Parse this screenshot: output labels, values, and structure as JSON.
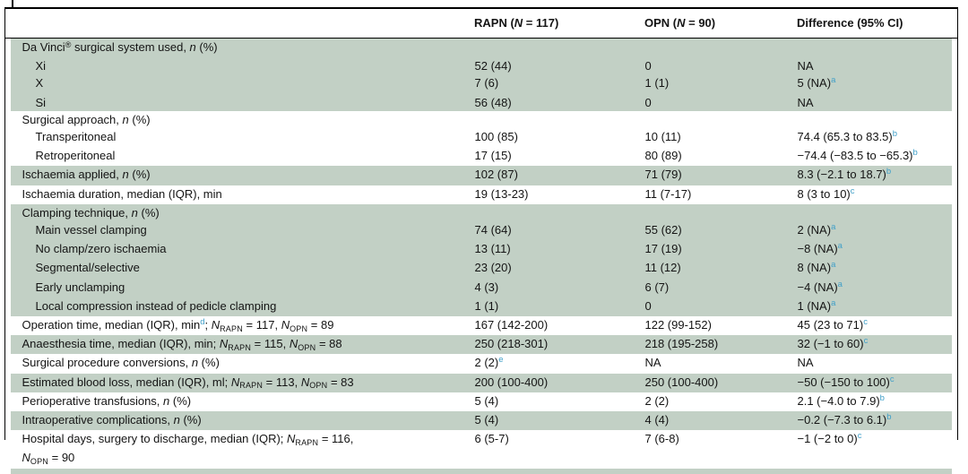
{
  "colors": {
    "row_stripe": "#c2d0c5",
    "superscript_blue": "#3f9fc8",
    "border": "#000000",
    "ink": "#141414"
  },
  "header": {
    "rapn": [
      [
        "RAPN (",
        ""
      ],
      [
        "N",
        "i"
      ],
      [
        " = 117)",
        ""
      ]
    ],
    "opn": [
      [
        "OPN (",
        ""
      ],
      [
        "N",
        "i"
      ],
      [
        " = 90)",
        ""
      ]
    ],
    "difference": [
      [
        "Difference (95% CI)",
        ""
      ]
    ]
  },
  "table": {
    "rows": [
      {
        "bg": "g",
        "indent": 0,
        "label": [
          [
            "Da Vinci",
            ""
          ],
          [
            "®",
            "sup"
          ],
          [
            " surgical system used, ",
            ""
          ],
          [
            "n",
            "i"
          ],
          [
            " (%)",
            ""
          ]
        ],
        "rapn": [],
        "opn": [],
        "diff": []
      },
      {
        "bg": "g",
        "indent": 1,
        "label": [
          [
            "Xi",
            ""
          ]
        ],
        "rapn": [
          [
            "52 (44)",
            ""
          ]
        ],
        "opn": [
          [
            "0",
            ""
          ]
        ],
        "diff": [
          [
            "NA",
            ""
          ]
        ]
      },
      {
        "bg": "g",
        "indent": 1,
        "label": [
          [
            "X",
            ""
          ]
        ],
        "rapn": [
          [
            "7 (6)",
            ""
          ]
        ],
        "opn": [
          [
            "1 (1)",
            ""
          ]
        ],
        "diff": [
          [
            "5 (NA)",
            ""
          ],
          [
            "a",
            "supb"
          ]
        ]
      },
      {
        "bg": "g",
        "indent": 1,
        "label": [
          [
            "Si",
            ""
          ]
        ],
        "rapn": [
          [
            "56 (48)",
            ""
          ]
        ],
        "opn": [
          [
            "0",
            ""
          ]
        ],
        "diff": [
          [
            "NA",
            ""
          ]
        ]
      },
      {
        "bg": "w",
        "indent": 0,
        "label": [
          [
            "Surgical approach, ",
            ""
          ],
          [
            "n",
            "i"
          ],
          [
            " (%)",
            ""
          ]
        ],
        "rapn": [],
        "opn": [],
        "diff": []
      },
      {
        "bg": "w",
        "indent": 1,
        "label": [
          [
            "Transperitoneal",
            ""
          ]
        ],
        "rapn": [
          [
            "100 (85)",
            ""
          ]
        ],
        "opn": [
          [
            "10 (11)",
            ""
          ]
        ],
        "diff": [
          [
            "74.4 (65.3 to 83.5)",
            ""
          ],
          [
            "b",
            "supb"
          ]
        ]
      },
      {
        "bg": "w",
        "indent": 1,
        "label": [
          [
            "Retroperitoneal",
            ""
          ]
        ],
        "rapn": [
          [
            "17 (15)",
            ""
          ]
        ],
        "opn": [
          [
            "80 (89)",
            ""
          ]
        ],
        "diff": [
          [
            "−74.4 (−83.5 to −65.3)",
            ""
          ],
          [
            "b",
            "supb"
          ]
        ]
      },
      {
        "bg": "g",
        "indent": 0,
        "label": [
          [
            "Ischaemia applied, ",
            ""
          ],
          [
            "n",
            "i"
          ],
          [
            " (%)",
            ""
          ]
        ],
        "rapn": [
          [
            "102 (87)",
            ""
          ]
        ],
        "opn": [
          [
            "71 (79)",
            ""
          ]
        ],
        "diff": [
          [
            "8.3 (−2.1 to 18.7)",
            ""
          ],
          [
            "b",
            "supb"
          ]
        ]
      },
      {
        "bg": "w",
        "indent": 0,
        "label": [
          [
            "Ischaemia duration, median (IQR), min",
            ""
          ]
        ],
        "rapn": [
          [
            "19 (13-23)",
            ""
          ]
        ],
        "opn": [
          [
            "11 (7-17)",
            ""
          ]
        ],
        "diff": [
          [
            "8 (3 to 10)",
            ""
          ],
          [
            "c",
            "supb"
          ]
        ]
      },
      {
        "bg": "g",
        "indent": 0,
        "label": [
          [
            "Clamping technique, ",
            ""
          ],
          [
            "n",
            "i"
          ],
          [
            " (%)",
            ""
          ]
        ],
        "rapn": [],
        "opn": [],
        "diff": []
      },
      {
        "bg": "g",
        "indent": 1,
        "label": [
          [
            "Main vessel clamping",
            ""
          ]
        ],
        "rapn": [
          [
            "74 (64)",
            ""
          ]
        ],
        "opn": [
          [
            "55 (62)",
            ""
          ]
        ],
        "diff": [
          [
            "2 (NA)",
            ""
          ],
          [
            "a",
            "supb"
          ]
        ]
      },
      {
        "bg": "g",
        "indent": 1,
        "label": [
          [
            "No clamp/zero ischaemia",
            ""
          ]
        ],
        "rapn": [
          [
            "13 (11)",
            ""
          ]
        ],
        "opn": [
          [
            "17 (19)",
            ""
          ]
        ],
        "diff": [
          [
            "−8 (NA)",
            ""
          ],
          [
            "a",
            "supb"
          ]
        ]
      },
      {
        "bg": "g",
        "indent": 1,
        "label": [
          [
            "Segmental/selective",
            ""
          ]
        ],
        "rapn": [
          [
            "23 (20)",
            ""
          ]
        ],
        "opn": [
          [
            "11 (12)",
            ""
          ]
        ],
        "diff": [
          [
            "8 (NA)",
            ""
          ],
          [
            "a",
            "supb"
          ]
        ]
      },
      {
        "bg": "g",
        "indent": 1,
        "label": [
          [
            "Early unclamping",
            ""
          ]
        ],
        "rapn": [
          [
            "4 (3)",
            ""
          ]
        ],
        "opn": [
          [
            "6 (7)",
            ""
          ]
        ],
        "diff": [
          [
            "−4 (NA)",
            ""
          ],
          [
            "a",
            "supb"
          ]
        ]
      },
      {
        "bg": "g",
        "indent": 1,
        "label": [
          [
            "Local compression instead of pedicle clamping",
            ""
          ]
        ],
        "rapn": [
          [
            "1 (1)",
            ""
          ]
        ],
        "opn": [
          [
            "0",
            ""
          ]
        ],
        "diff": [
          [
            "1 (NA)",
            ""
          ],
          [
            "a",
            "supb"
          ]
        ]
      },
      {
        "bg": "w",
        "indent": 0,
        "label": [
          [
            "Operation time, median (IQR), min",
            ""
          ],
          [
            "d",
            "supb"
          ],
          [
            "; ",
            ""
          ],
          [
            "N",
            "i"
          ],
          [
            "RAPN",
            "sub"
          ],
          [
            " = 117, ",
            ""
          ],
          [
            "N",
            "i"
          ],
          [
            "OPN",
            "sub"
          ],
          [
            " = 89",
            ""
          ]
        ],
        "rapn": [
          [
            "167 (142-200)",
            ""
          ]
        ],
        "opn": [
          [
            "122 (99-152)",
            ""
          ]
        ],
        "diff": [
          [
            "45 (23 to 71)",
            ""
          ],
          [
            "c",
            "supb"
          ]
        ]
      },
      {
        "bg": "g",
        "indent": 0,
        "label": [
          [
            "Anaesthesia time, median (IQR), min; ",
            ""
          ],
          [
            "N",
            "i"
          ],
          [
            "RAPN",
            "sub"
          ],
          [
            " = 115, ",
            ""
          ],
          [
            "N",
            "i"
          ],
          [
            "OPN",
            "sub"
          ],
          [
            " = 88",
            ""
          ]
        ],
        "rapn": [
          [
            "250 (218-301)",
            ""
          ]
        ],
        "opn": [
          [
            "218 (195-258)",
            ""
          ]
        ],
        "diff": [
          [
            "32 (−1 to 60)",
            ""
          ],
          [
            "c",
            "supb"
          ]
        ]
      },
      {
        "bg": "w",
        "indent": 0,
        "label": [
          [
            "Surgical procedure conversions, ",
            ""
          ],
          [
            "n",
            "i"
          ],
          [
            " (%)",
            ""
          ]
        ],
        "rapn": [
          [
            "2 (2)",
            ""
          ],
          [
            "e",
            "supb"
          ]
        ],
        "opn": [
          [
            "NA",
            ""
          ]
        ],
        "diff": [
          [
            "NA",
            ""
          ]
        ]
      },
      {
        "bg": "g",
        "indent": 0,
        "label": [
          [
            "Estimated blood loss, median (IQR), ml; ",
            ""
          ],
          [
            "N",
            "i"
          ],
          [
            "RAPN",
            "sub"
          ],
          [
            " = 113, ",
            ""
          ],
          [
            "N",
            "i"
          ],
          [
            "OPN",
            "sub"
          ],
          [
            " = 83",
            ""
          ]
        ],
        "rapn": [
          [
            "200 (100-400)",
            ""
          ]
        ],
        "opn": [
          [
            "250 (100-400)",
            ""
          ]
        ],
        "diff": [
          [
            "−50 (−150 to 100)",
            ""
          ],
          [
            "c",
            "supb"
          ]
        ]
      },
      {
        "bg": "w",
        "indent": 0,
        "label": [
          [
            "Perioperative transfusions, ",
            ""
          ],
          [
            "n",
            "i"
          ],
          [
            " (%)",
            ""
          ]
        ],
        "rapn": [
          [
            "5 (4)",
            ""
          ]
        ],
        "opn": [
          [
            "2 (2)",
            ""
          ]
        ],
        "diff": [
          [
            "2.1 (−4.0 to 7.9)",
            ""
          ],
          [
            "b",
            "supb"
          ]
        ]
      },
      {
        "bg": "g",
        "indent": 0,
        "label": [
          [
            "Intraoperative complications, ",
            ""
          ],
          [
            "n",
            "i"
          ],
          [
            " (%)",
            ""
          ]
        ],
        "rapn": [
          [
            "5 (4)",
            ""
          ]
        ],
        "opn": [
          [
            "4 (4)",
            ""
          ]
        ],
        "diff": [
          [
            "−0.2 (−7.3 to 6.1)",
            ""
          ],
          [
            "b",
            "supb"
          ]
        ]
      },
      {
        "bg": "w",
        "indent": 0,
        "label": [
          [
            "Hospital days, surgery to discharge, median (IQR); ",
            ""
          ],
          [
            "N",
            "i"
          ],
          [
            "RAPN",
            "sub"
          ],
          [
            " = 116,",
            ""
          ],
          [
            "",
            "br"
          ],
          [
            "N",
            "i"
          ],
          [
            "OPN",
            "sub"
          ],
          [
            " = 90",
            ""
          ]
        ],
        "rapn": [
          [
            "6 (5-7)",
            ""
          ]
        ],
        "opn": [
          [
            "7 (6-8)",
            ""
          ]
        ],
        "diff": [
          [
            "−1 (−2 to 0)",
            ""
          ],
          [
            "c",
            "supb"
          ]
        ]
      }
    ]
  }
}
